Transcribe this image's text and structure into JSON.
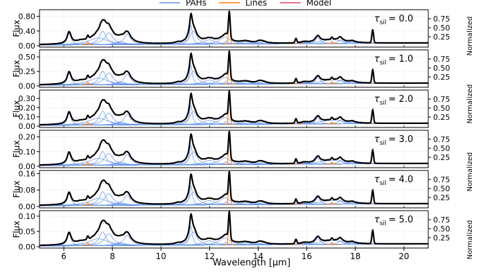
{
  "chart_data": {
    "type": "line",
    "xlabel": "Wavelength [μm]",
    "xlim": [
      5,
      21
    ],
    "x_ticks": [
      6,
      8,
      10,
      12,
      14,
      16,
      18,
      20
    ],
    "ylabel_left": "Flux",
    "ylabel_right": "Normalized",
    "right_ticks": [
      0.25,
      0.5,
      0.75
    ],
    "grid": true,
    "legend": {
      "placement": "top-center",
      "entries": [
        {
          "label": "PAHs",
          "color": "#6495ed"
        },
        {
          "label": "Lines",
          "color": "#ff7f0e"
        },
        {
          "label": "Model",
          "color": "#e8405a"
        }
      ]
    },
    "colors": {
      "pah": "#6495ed",
      "line": "#ff7f0e",
      "model": "#e8405a",
      "data": "#000000"
    },
    "pah_features": [
      {
        "center": 6.22,
        "fwhm": 0.19,
        "rel_amp": 0.38
      },
      {
        "center": 6.69,
        "fwhm": 0.47,
        "rel_amp": 0.06
      },
      {
        "center": 7.42,
        "fwhm": 0.94,
        "rel_amp": 0.22
      },
      {
        "center": 7.6,
        "fwhm": 0.33,
        "rel_amp": 0.44
      },
      {
        "center": 7.85,
        "fwhm": 0.42,
        "rel_amp": 0.38
      },
      {
        "center": 8.33,
        "fwhm": 0.42,
        "rel_amp": 0.1
      },
      {
        "center": 8.61,
        "fwhm": 0.34,
        "rel_amp": 0.33
      },
      {
        "center": 10.68,
        "fwhm": 0.21,
        "rel_amp": 0.03
      },
      {
        "center": 11.23,
        "fwhm": 0.14,
        "rel_amp": 0.62
      },
      {
        "center": 11.33,
        "fwhm": 0.36,
        "rel_amp": 0.42
      },
      {
        "center": 11.99,
        "fwhm": 0.54,
        "rel_amp": 0.14
      },
      {
        "center": 12.62,
        "fwhm": 0.53,
        "rel_amp": 0.22
      },
      {
        "center": 12.69,
        "fwhm": 0.16,
        "rel_amp": 0.1
      },
      {
        "center": 13.48,
        "fwhm": 0.54,
        "rel_amp": 0.07
      },
      {
        "center": 14.04,
        "fwhm": 0.23,
        "rel_amp": 0.05
      },
      {
        "center": 14.19,
        "fwhm": 0.36,
        "rel_amp": 0.06
      },
      {
        "center": 15.9,
        "fwhm": 0.32,
        "rel_amp": 0.04
      },
      {
        "center": 16.45,
        "fwhm": 0.23,
        "rel_amp": 0.2
      },
      {
        "center": 17.04,
        "fwhm": 1.11,
        "rel_amp": 0.12
      },
      {
        "center": 17.38,
        "fwhm": 0.21,
        "rel_amp": 0.12
      },
      {
        "center": 17.87,
        "fwhm": 0.29,
        "rel_amp": 0.05
      }
    ],
    "lines": [
      {
        "center": 6.985,
        "rel_amp": 0.1
      },
      {
        "center": 12.813,
        "rel_amp": 0.86
      },
      {
        "center": 15.555,
        "rel_amp": 0.14
      },
      {
        "center": 17.035,
        "rel_amp": 0.06
      },
      {
        "center": 18.713,
        "rel_amp": 0.42
      }
    ],
    "panels": [
      {
        "tau_label": "τ",
        "tau_sub": "sil",
        "tau_value": "= 0.0",
        "ylim": [
          0,
          0.98
        ],
        "y_ticks": [
          0.0,
          0.4,
          0.8
        ],
        "peak_flux": 0.94
      },
      {
        "tau_label": "τ",
        "tau_sub": "sil",
        "tau_value": "= 1.0",
        "ylim": [
          0,
          0.62
        ],
        "y_ticks": [
          0.0,
          0.25,
          0.5
        ],
        "peak_flux": 0.6
      },
      {
        "tau_label": "τ",
        "tau_sub": "sil",
        "tau_value": "= 2.0",
        "ylim": [
          0,
          0.39
        ],
        "y_ticks": [
          0.0,
          0.1,
          0.2,
          0.3
        ],
        "peak_flux": 0.38
      },
      {
        "tau_label": "τ",
        "tau_sub": "sil",
        "tau_value": "= 3.0",
        "ylim": [
          0,
          0.245
        ],
        "y_ticks": [
          0.0,
          0.1,
          0.2
        ],
        "peak_flux": 0.238
      },
      {
        "tau_label": "τ",
        "tau_sub": "sil",
        "tau_value": "= 4.0",
        "ylim": [
          0,
          0.175
        ],
        "y_ticks": [
          0.0,
          0.08,
          0.16
        ],
        "peak_flux": 0.17
      },
      {
        "tau_label": "τ",
        "tau_sub": "sil",
        "tau_value": "= 5.0",
        "ylim": [
          0,
          0.118
        ],
        "y_ticks": [
          0.0,
          0.05,
          0.1
        ],
        "peak_flux": 0.115
      }
    ]
  }
}
